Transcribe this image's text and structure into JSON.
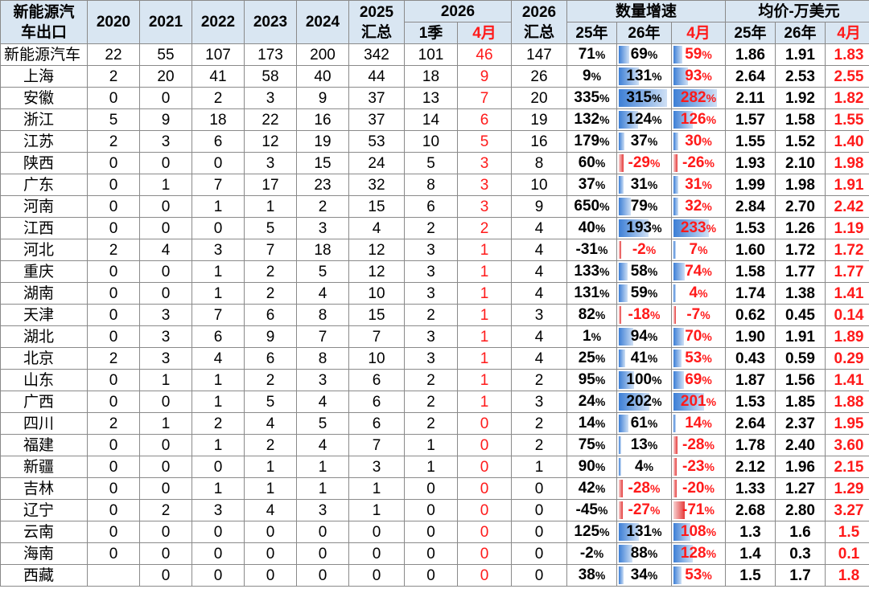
{
  "header": {
    "corner": [
      "新能源汽",
      "车出口"
    ],
    "years": [
      "2020",
      "2021",
      "2022",
      "2023",
      "2024"
    ],
    "y2025": [
      "2025",
      "汇总"
    ],
    "y2026": "2026",
    "q1": "1季",
    "apr": "4月",
    "y2026sum": [
      "2026",
      "汇总"
    ],
    "growth": "数量增速",
    "growth_sub": [
      "25年",
      "26年",
      "4月"
    ],
    "price": "均价-万美元",
    "price_sub": [
      "25年",
      "26年",
      "4月"
    ]
  },
  "rows": [
    {
      "name": "新能源汽车",
      "v2020": "22",
      "v2021": "55",
      "v2022": "107",
      "v2023": "173",
      "v2024": "200",
      "v2025": "342",
      "q1": "101",
      "apr": "46",
      "s2026": "147",
      "g25": "71",
      "g26": "69",
      "gapr": "59",
      "p25": "1.86",
      "p26": "1.91",
      "papr": "1.83",
      "g26n": 69,
      "gaprn": 59
    },
    {
      "name": "上海",
      "v2020": "2",
      "v2021": "20",
      "v2022": "41",
      "v2023": "58",
      "v2024": "40",
      "v2025": "44",
      "q1": "18",
      "apr": "9",
      "s2026": "26",
      "g25": "9",
      "g26": "131",
      "gapr": "93",
      "p25": "2.64",
      "p26": "2.53",
      "papr": "2.55",
      "g26n": 131,
      "gaprn": 93
    },
    {
      "name": "安徽",
      "v2020": "0",
      "v2021": "0",
      "v2022": "2",
      "v2023": "3",
      "v2024": "9",
      "v2025": "37",
      "q1": "13",
      "apr": "7",
      "s2026": "20",
      "g25": "335",
      "g26": "315",
      "gapr": "282",
      "p25": "2.11",
      "p26": "1.92",
      "papr": "1.82",
      "g26n": 315,
      "gaprn": 282
    },
    {
      "name": "浙江",
      "v2020": "5",
      "v2021": "9",
      "v2022": "18",
      "v2023": "22",
      "v2024": "16",
      "v2025": "37",
      "q1": "14",
      "apr": "6",
      "s2026": "19",
      "g25": "132",
      "g26": "124",
      "gapr": "126",
      "p25": "1.57",
      "p26": "1.58",
      "papr": "1.55",
      "g26n": 124,
      "gaprn": 126
    },
    {
      "name": "江苏",
      "v2020": "2",
      "v2021": "3",
      "v2022": "6",
      "v2023": "12",
      "v2024": "19",
      "v2025": "53",
      "q1": "10",
      "apr": "5",
      "s2026": "16",
      "g25": "179",
      "g26": "37",
      "gapr": "30",
      "p25": "1.55",
      "p26": "1.52",
      "papr": "1.40",
      "g26n": 37,
      "gaprn": 30
    },
    {
      "name": "陕西",
      "v2020": "0",
      "v2021": "0",
      "v2022": "0",
      "v2023": "3",
      "v2024": "15",
      "v2025": "24",
      "q1": "5",
      "apr": "3",
      "s2026": "8",
      "g25": "60",
      "g26": "-29",
      "gapr": "-26",
      "p25": "1.93",
      "p26": "2.10",
      "papr": "1.98",
      "g26n": -29,
      "gaprn": -26
    },
    {
      "name": "广东",
      "v2020": "0",
      "v2021": "1",
      "v2022": "7",
      "v2023": "17",
      "v2024": "23",
      "v2025": "32",
      "q1": "8",
      "apr": "3",
      "s2026": "10",
      "g25": "37",
      "g26": "31",
      "gapr": "31",
      "p25": "1.99",
      "p26": "1.98",
      "papr": "1.91",
      "g26n": 31,
      "gaprn": 31
    },
    {
      "name": "河南",
      "v2020": "0",
      "v2021": "0",
      "v2022": "1",
      "v2023": "1",
      "v2024": "2",
      "v2025": "15",
      "q1": "6",
      "apr": "3",
      "s2026": "9",
      "g25": "650",
      "g26": "79",
      "gapr": "32",
      "p25": "2.84",
      "p26": "2.70",
      "papr": "2.42",
      "g26n": 79,
      "gaprn": 32
    },
    {
      "name": "江西",
      "v2020": "0",
      "v2021": "0",
      "v2022": "0",
      "v2023": "5",
      "v2024": "3",
      "v2025": "4",
      "q1": "2",
      "apr": "2",
      "s2026": "4",
      "g25": "40",
      "g26": "193",
      "gapr": "233",
      "p25": "1.53",
      "p26": "1.26",
      "papr": "1.19",
      "g26n": 193,
      "gaprn": 233
    },
    {
      "name": "河北",
      "v2020": "2",
      "v2021": "4",
      "v2022": "3",
      "v2023": "7",
      "v2024": "18",
      "v2025": "12",
      "q1": "3",
      "apr": "1",
      "s2026": "4",
      "g25": "-31",
      "g26": "-2",
      "gapr": "7",
      "p25": "1.60",
      "p26": "1.72",
      "papr": "1.72",
      "g26n": -2,
      "gaprn": 7
    },
    {
      "name": "重庆",
      "v2020": "0",
      "v2021": "0",
      "v2022": "1",
      "v2023": "2",
      "v2024": "5",
      "v2025": "12",
      "q1": "3",
      "apr": "1",
      "s2026": "4",
      "g25": "133",
      "g26": "58",
      "gapr": "74",
      "p25": "1.58",
      "p26": "1.77",
      "papr": "1.77",
      "g26n": 58,
      "gaprn": 74
    },
    {
      "name": "湖南",
      "v2020": "0",
      "v2021": "0",
      "v2022": "1",
      "v2023": "2",
      "v2024": "4",
      "v2025": "10",
      "q1": "3",
      "apr": "1",
      "s2026": "4",
      "g25": "131",
      "g26": "59",
      "gapr": "4",
      "p25": "1.74",
      "p26": "1.38",
      "papr": "1.41",
      "g26n": 59,
      "gaprn": 4
    },
    {
      "name": "天津",
      "v2020": "0",
      "v2021": "3",
      "v2022": "7",
      "v2023": "6",
      "v2024": "8",
      "v2025": "15",
      "q1": "2",
      "apr": "1",
      "s2026": "3",
      "g25": "82",
      "g26": "-18",
      "gapr": "-7",
      "p25": "0.62",
      "p26": "0.45",
      "papr": "0.14",
      "g26n": -18,
      "gaprn": -7
    },
    {
      "name": "湖北",
      "v2020": "0",
      "v2021": "3",
      "v2022": "6",
      "v2023": "9",
      "v2024": "7",
      "v2025": "7",
      "q1": "3",
      "apr": "1",
      "s2026": "4",
      "g25": "1",
      "g26": "94",
      "gapr": "70",
      "p25": "1.90",
      "p26": "1.91",
      "papr": "1.89",
      "g26n": 94,
      "gaprn": 70
    },
    {
      "name": "北京",
      "v2020": "2",
      "v2021": "3",
      "v2022": "4",
      "v2023": "6",
      "v2024": "8",
      "v2025": "10",
      "q1": "3",
      "apr": "1",
      "s2026": "4",
      "g25": "25",
      "g26": "41",
      "gapr": "53",
      "p25": "0.43",
      "p26": "0.59",
      "papr": "0.29",
      "g26n": 41,
      "gaprn": 53
    },
    {
      "name": "山东",
      "v2020": "0",
      "v2021": "1",
      "v2022": "1",
      "v2023": "2",
      "v2024": "3",
      "v2025": "6",
      "q1": "2",
      "apr": "1",
      "s2026": "2",
      "g25": "95",
      "g26": "100",
      "gapr": "69",
      "p25": "1.87",
      "p26": "1.56",
      "papr": "1.41",
      "g26n": 100,
      "gaprn": 69
    },
    {
      "name": "广西",
      "v2020": "0",
      "v2021": "0",
      "v2022": "1",
      "v2023": "5",
      "v2024": "4",
      "v2025": "6",
      "q1": "2",
      "apr": "1",
      "s2026": "3",
      "g25": "24",
      "g26": "202",
      "gapr": "201",
      "p25": "1.53",
      "p26": "1.85",
      "papr": "1.88",
      "g26n": 202,
      "gaprn": 201
    },
    {
      "name": "四川",
      "v2020": "2",
      "v2021": "1",
      "v2022": "2",
      "v2023": "4",
      "v2024": "5",
      "v2025": "6",
      "q1": "2",
      "apr": "0",
      "s2026": "2",
      "g25": "14",
      "g26": "61",
      "gapr": "14",
      "p25": "2.64",
      "p26": "2.37",
      "papr": "1.95",
      "g26n": 61,
      "gaprn": 14
    },
    {
      "name": "福建",
      "v2020": "0",
      "v2021": "0",
      "v2022": "1",
      "v2023": "2",
      "v2024": "4",
      "v2025": "7",
      "q1": "1",
      "apr": "0",
      "s2026": "2",
      "g25": "75",
      "g26": "13",
      "gapr": "-28",
      "p25": "1.78",
      "p26": "2.40",
      "papr": "3.60",
      "g26n": 13,
      "gaprn": -28
    },
    {
      "name": "新疆",
      "v2020": "0",
      "v2021": "0",
      "v2022": "0",
      "v2023": "1",
      "v2024": "1",
      "v2025": "3",
      "q1": "1",
      "apr": "0",
      "s2026": "1",
      "g25": "90",
      "g26": "4",
      "gapr": "-23",
      "p25": "2.12",
      "p26": "1.96",
      "papr": "2.15",
      "g26n": 4,
      "gaprn": -23
    },
    {
      "name": "吉林",
      "v2020": "0",
      "v2021": "0",
      "v2022": "1",
      "v2023": "1",
      "v2024": "1",
      "v2025": "1",
      "q1": "0",
      "apr": "0",
      "s2026": "0",
      "g25": "42",
      "g26": "-28",
      "gapr": "-20",
      "p25": "1.33",
      "p26": "1.27",
      "papr": "1.29",
      "g26n": -28,
      "gaprn": -20
    },
    {
      "name": "辽宁",
      "v2020": "0",
      "v2021": "2",
      "v2022": "3",
      "v2023": "4",
      "v2024": "3",
      "v2025": "1",
      "q1": "0",
      "apr": "0",
      "s2026": "0",
      "g25": "-45",
      "g26": "-27",
      "gapr": "-71",
      "p25": "2.68",
      "p26": "2.80",
      "papr": "3.27",
      "g26n": -27,
      "gaprn": -71
    },
    {
      "name": "云南",
      "v2020": "0",
      "v2021": "0",
      "v2022": "0",
      "v2023": "0",
      "v2024": "0",
      "v2025": "0",
      "q1": "0",
      "apr": "0",
      "s2026": "0",
      "g25": "125",
      "g26": "131",
      "gapr": "108",
      "p25": "1.3",
      "p26": "1.6",
      "papr": "1.5",
      "g26n": 131,
      "gaprn": 108
    },
    {
      "name": "海南",
      "v2020": "0",
      "v2021": "0",
      "v2022": "0",
      "v2023": "0",
      "v2024": "0",
      "v2025": "0",
      "q1": "0",
      "apr": "0",
      "s2026": "0",
      "g25": "-2",
      "g26": "88",
      "gapr": "128",
      "p25": "1.4",
      "p26": "0.3",
      "papr": "0.1",
      "g26n": 88,
      "gaprn": 128
    },
    {
      "name": "西藏",
      "v2020": "",
      "v2021": "0",
      "v2022": "0",
      "v2023": "0",
      "v2024": "0",
      "v2025": "0",
      "q1": "0",
      "apr": "0",
      "s2026": "0",
      "g25": "38",
      "g26": "34",
      "gapr": "53",
      "p25": "1.5",
      "p26": "1.7",
      "papr": "1.8",
      "g26n": 34,
      "gaprn": 53
    }
  ],
  "colors": {
    "header_bg": "#d9e6f2",
    "red": "#ff1a1a",
    "bar_blue": "#3d7fd6",
    "bar_red": "#e53b3b"
  }
}
